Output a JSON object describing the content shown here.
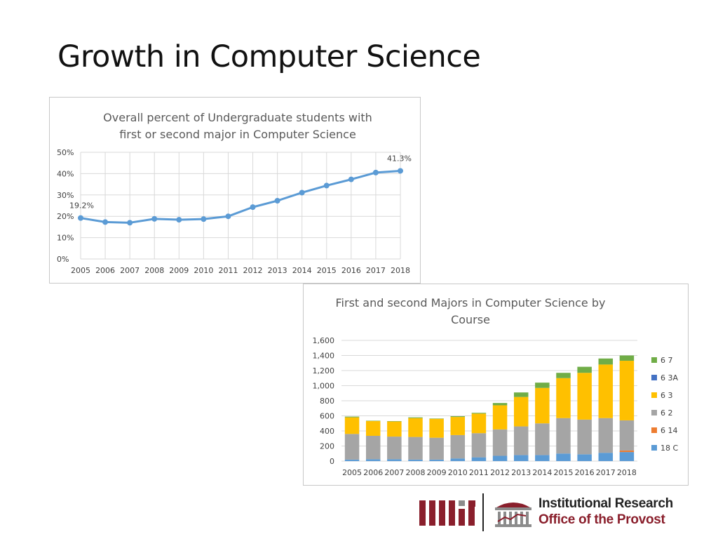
{
  "slide": {
    "title": "Growth in Computer Science"
  },
  "colors": {
    "line": "#5b9bd5",
    "c18C": "#5b9bd5",
    "c614": "#ed7d31",
    "c62": "#a5a5a5",
    "c63": "#ffc000",
    "c63A": "#4472c4",
    "c67": "#70ad47",
    "mit_red": "#8a1f2c",
    "mit_gray": "#8c8c8c"
  },
  "chart_data": [
    {
      "type": "line",
      "title_lines": [
        "Overall percent of Undergraduate students with",
        "first or second major in Computer Science"
      ],
      "x": [
        "2005",
        "2006",
        "2007",
        "2008",
        "2009",
        "2010",
        "2011",
        "2012",
        "2013",
        "2014",
        "2015",
        "2016",
        "2017",
        "2018"
      ],
      "y": [
        19.2,
        17.3,
        17.0,
        18.8,
        18.4,
        18.7,
        20.0,
        24.3,
        27.3,
        31.1,
        34.4,
        37.3,
        40.5,
        41.3
      ],
      "ylim": [
        0,
        50
      ],
      "yticks": [
        "0%",
        "10%",
        "20%",
        "30%",
        "40%",
        "50%"
      ],
      "data_labels": [
        {
          "index": 0,
          "text": "19.2%"
        },
        {
          "index": 13,
          "text": "41.3%"
        }
      ],
      "grid": true
    },
    {
      "type": "bar",
      "stacked": true,
      "title_lines": [
        "First and second Majors in Computer Science by",
        "Course"
      ],
      "categories": [
        "2005",
        "2006",
        "2007",
        "2008",
        "2009",
        "2010",
        "2011",
        "2012",
        "2013",
        "2014",
        "2015",
        "2016",
        "2017",
        "2018"
      ],
      "ylim": [
        0,
        1600
      ],
      "yticks": [
        "0",
        "200",
        "400",
        "600",
        "800",
        "1,000",
        "1,200",
        "1,400",
        "1,600"
      ],
      "legend_position": "right",
      "series": [
        {
          "name": "18 C",
          "color": "#5b9bd5",
          "values": [
            20,
            25,
            25,
            20,
            20,
            35,
            50,
            70,
            80,
            80,
            100,
            90,
            110,
            120
          ]
        },
        {
          "name": "6 14",
          "color": "#ed7d31",
          "values": [
            0,
            0,
            0,
            0,
            0,
            0,
            0,
            0,
            0,
            0,
            0,
            0,
            0,
            20
          ]
        },
        {
          "name": "6 2",
          "color": "#a5a5a5",
          "values": [
            340,
            310,
            300,
            300,
            290,
            310,
            320,
            350,
            380,
            420,
            470,
            460,
            460,
            400
          ]
        },
        {
          "name": "6 3",
          "color": "#ffc000",
          "values": [
            220,
            195,
            200,
            250,
            250,
            240,
            260,
            320,
            390,
            470,
            530,
            620,
            710,
            790
          ]
        },
        {
          "name": "6 3A",
          "color": "#4472c4",
          "values": [
            0,
            0,
            0,
            0,
            0,
            0,
            0,
            0,
            0,
            0,
            0,
            0,
            0,
            0
          ]
        },
        {
          "name": "6 7",
          "color": "#70ad47",
          "values": [
            10,
            5,
            5,
            10,
            5,
            10,
            10,
            30,
            60,
            70,
            70,
            80,
            80,
            70
          ]
        }
      ],
      "legend_order": [
        "6 7",
        "6 3A",
        "6 3",
        "6 2",
        "6 14",
        "18 C"
      ]
    }
  ],
  "footer": {
    "ir_line1": "Institutional Research",
    "ir_line2": "Office of the Provost"
  }
}
